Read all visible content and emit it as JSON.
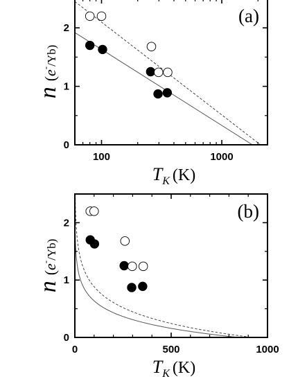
{
  "chart_data": [
    {
      "type": "scatter",
      "panel_label": "(a)",
      "x_scale": "log",
      "xlim": [
        60,
        2400
      ],
      "ylim": [
        0,
        2.5
      ],
      "x_ticks": [
        100,
        1000
      ],
      "x_tick_labels": [
        "100",
        "1000"
      ],
      "y_ticks": [
        0,
        1,
        2
      ],
      "y_tick_labels": [
        "0",
        "1",
        "2"
      ],
      "ylabel": {
        "symbol": "n",
        "unit_pre": "(",
        "unit_e": "e",
        "unit_sup": "-",
        "unit_post": "/Yb)"
      },
      "xlabel": {
        "symbol": "T",
        "subscript": "K",
        "unit": "(K)"
      },
      "series": [
        {
          "marker": "filled-circle",
          "x": [
            80,
            102,
            256,
            295,
            352
          ],
          "y": [
            1.7,
            1.63,
            1.25,
            0.87,
            0.89
          ]
        },
        {
          "marker": "open-circle",
          "x": [
            80,
            100,
            260,
            298,
            355
          ],
          "y": [
            2.2,
            2.2,
            1.68,
            1.24,
            1.24
          ]
        }
      ],
      "fits": [
        {
          "style": "solid",
          "x": [
            60,
            1800
          ],
          "y": [
            1.92,
            0
          ]
        },
        {
          "style": "dashed",
          "x": [
            60,
            2100
          ],
          "y": [
            2.45,
            0
          ]
        }
      ],
      "grid": false
    },
    {
      "type": "scatter",
      "panel_label": "(b)",
      "x_scale": "linear",
      "xlim": [
        0,
        1000
      ],
      "ylim": [
        0,
        2.5
      ],
      "x_ticks": [
        0,
        500,
        1000
      ],
      "x_tick_labels": [
        "0",
        "500",
        "1000"
      ],
      "y_ticks": [
        0,
        1,
        2
      ],
      "y_tick_labels": [
        "0",
        "1",
        "2"
      ],
      "ylabel": {
        "symbol": "n",
        "unit_pre": "(",
        "unit_e": "e",
        "unit_sup": "-",
        "unit_post": "/Yb)"
      },
      "xlabel": {
        "symbol": "T",
        "subscript": "K",
        "unit": "(K)"
      },
      "series": [
        {
          "marker": "filled-circle",
          "x": [
            80,
            102,
            256,
            295,
            352
          ],
          "y": [
            1.7,
            1.63,
            1.25,
            0.87,
            0.89
          ]
        },
        {
          "marker": "open-circle",
          "x": [
            80,
            100,
            260,
            298,
            355
          ],
          "y": [
            2.2,
            2.2,
            1.68,
            1.24,
            1.24
          ]
        }
      ],
      "fits": [
        {
          "style": "solid",
          "curve": "log",
          "x0": 1,
          "y0": 2.01,
          "x_end": 850
        },
        {
          "style": "dashed",
          "curve": "log",
          "x0": 1,
          "y0": 2.72,
          "x_end": 920
        }
      ],
      "grid": false
    }
  ]
}
